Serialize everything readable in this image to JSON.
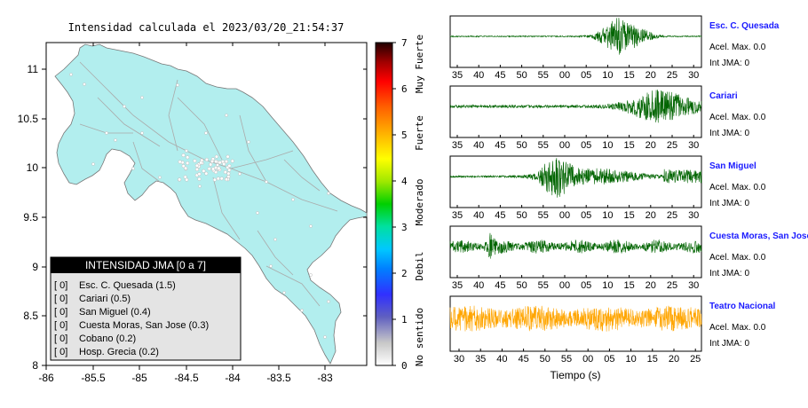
{
  "map": {
    "title": "Intensidad calculada el 2023/03/20_21:54:37",
    "lon_ticks": [
      "-86",
      "-85.5",
      "-85",
      "-84.5",
      "-84",
      "-83.5",
      "-83"
    ],
    "lat_ticks": [
      "11",
      "10.5",
      "10",
      "9.5",
      "9",
      "8.5",
      "8"
    ],
    "lon_range": [
      -86,
      -82.5
    ],
    "lat_range": [
      8,
      11.3
    ],
    "land_color": "#b2eeee"
  },
  "legend": {
    "title": "INTENSIDAD JMA [0 a 7]",
    "items": [
      {
        "code": "[ 0]",
        "text": "Esc. C. Quesada (1.5)"
      },
      {
        "code": "[ 0]",
        "text": "Cariari (0.5)"
      },
      {
        "code": "[ 0]",
        "text": "San Miguel (0.4)"
      },
      {
        "code": "[ 0]",
        "text": "Cuesta Moras, San Jose (0.3)"
      },
      {
        "code": "[ 0]",
        "text": "Cobano (0.2)"
      },
      {
        "code": "[ 0]",
        "text": "Hosp. Grecia (0.2)"
      }
    ]
  },
  "colorbar": {
    "ticks": [
      "0",
      "1",
      "2",
      "3",
      "4",
      "5",
      "6",
      "7"
    ],
    "labels": [
      "No sentido",
      "Debil",
      "Moderado",
      "Fuerte",
      "Muy Fuerte"
    ]
  },
  "stations": [
    {
      "name": "Esc. C. Quesada",
      "acel": "Acel. Max. 0.0",
      "int": "Int JMA: 0",
      "color": "#006400",
      "ticks": [
        "35",
        "40",
        "45",
        "50",
        "55",
        "00",
        "05",
        "10",
        "15",
        "20",
        "25",
        "30"
      ]
    },
    {
      "name": "Cariari",
      "acel": "Acel. Max. 0.0",
      "int": "Int JMA: 0",
      "color": "#006400",
      "ticks": [
        "35",
        "40",
        "45",
        "50",
        "55",
        "00",
        "05",
        "10",
        "15",
        "20",
        "25",
        "30"
      ]
    },
    {
      "name": "San Miguel",
      "acel": "Acel. Max. 0.0",
      "int": "Int JMA: 0",
      "color": "#006400",
      "ticks": [
        "35",
        "40",
        "45",
        "50",
        "55",
        "00",
        "05",
        "10",
        "15",
        "20",
        "25",
        "30"
      ]
    },
    {
      "name": "Cuesta Moras, San Jose",
      "acel": "Acel. Max. 0.0",
      "int": "Int JMA: 0",
      "color": "#006400",
      "ticks": [
        "35",
        "40",
        "45",
        "50",
        "55",
        "00",
        "05",
        "10",
        "15",
        "20",
        "25",
        "30"
      ]
    },
    {
      "name": "Teatro Nacional",
      "acel": "Acel. Max. 0.0",
      "int": "Int JMA: 0",
      "color": "#ffa500",
      "ticks": [
        "30",
        "35",
        "40",
        "45",
        "50",
        "55",
        "00",
        "05",
        "10",
        "15",
        "20",
        "25"
      ]
    }
  ],
  "xlabel": "Tiempo (s)",
  "chart_data": [
    {
      "type": "line",
      "title": "Esc. C. Quesada",
      "x_ticks": [
        "35",
        "40",
        "45",
        "50",
        "55",
        "00",
        "05",
        "10",
        "15",
        "20",
        "25",
        "30"
      ],
      "shape": "quiet until ~05, strong burst 08-15, decays by 30"
    },
    {
      "type": "line",
      "title": "Cariari",
      "x_ticks": [
        "35",
        "40",
        "45",
        "50",
        "55",
        "00",
        "05",
        "10",
        "15",
        "20",
        "25",
        "30"
      ],
      "shape": "low noise, builds from ~05, strongest 15-25"
    },
    {
      "type": "line",
      "title": "San Miguel",
      "x_ticks": [
        "35",
        "40",
        "45",
        "50",
        "55",
        "00",
        "05",
        "10",
        "15",
        "20",
        "25",
        "30"
      ],
      "shape": "onset ~50, peak ~57-00, coda to 30"
    },
    {
      "type": "line",
      "title": "Cuesta Moras, San Jose",
      "x_ticks": [
        "35",
        "40",
        "45",
        "50",
        "55",
        "00",
        "05",
        "10",
        "15",
        "20",
        "25",
        "30"
      ],
      "shape": "continuous noise, spike ~43"
    },
    {
      "type": "line",
      "title": "Teatro Nacional",
      "x_ticks": [
        "30",
        "35",
        "40",
        "45",
        "50",
        "55",
        "00",
        "05",
        "10",
        "15",
        "20",
        "25"
      ],
      "shape": "continuous high-level noise"
    }
  ]
}
